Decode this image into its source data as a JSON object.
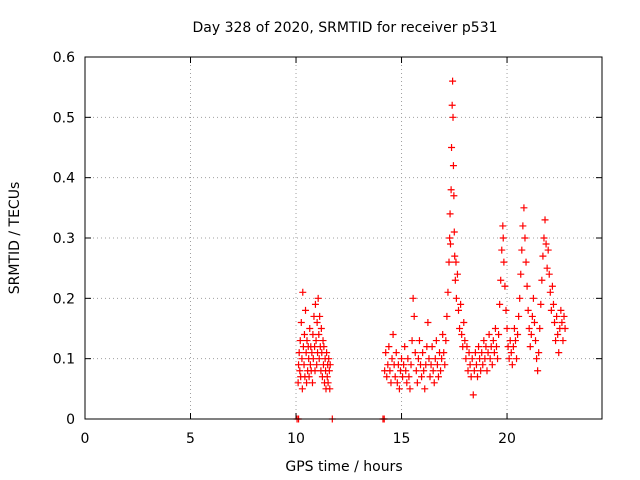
{
  "chart_data": {
    "type": "scatter",
    "title": "Day 328 of 2020, SRMTID for receiver p531",
    "xlabel": "GPS time / hours",
    "ylabel": "SRMTID / TECUs",
    "xlim": [
      0,
      24.5
    ],
    "ylim": [
      0,
      0.6
    ],
    "x_ticks": [
      0,
      5,
      10,
      15,
      20
    ],
    "x_tick_labels": [
      "0",
      "5",
      "10",
      "15",
      "20"
    ],
    "y_ticks": [
      0,
      0.1,
      0.2,
      0.3,
      0.4,
      0.5,
      0.6
    ],
    "y_tick_labels": [
      "0",
      "0.1",
      "0.2",
      "0.3",
      "0.4",
      "0.5",
      "0.6"
    ],
    "grid": true,
    "marker": "plus",
    "series": [
      {
        "name": "SRMTID",
        "color": "#ff0000",
        "points": [
          [
            10.05,
            0.0
          ],
          [
            10.12,
            0.0
          ],
          [
            11.72,
            0.0
          ],
          [
            14.12,
            0.0
          ],
          [
            14.18,
            0.0
          ],
          [
            10.1,
            0.06
          ],
          [
            10.12,
            0.09
          ],
          [
            10.15,
            0.11
          ],
          [
            10.18,
            0.08
          ],
          [
            10.2,
            0.13
          ],
          [
            10.22,
            0.07
          ],
          [
            10.25,
            0.16
          ],
          [
            10.28,
            0.1
          ],
          [
            10.3,
            0.05
          ],
          [
            10.32,
            0.21
          ],
          [
            10.35,
            0.12
          ],
          [
            10.38,
            0.09
          ],
          [
            10.4,
            0.14
          ],
          [
            10.42,
            0.07
          ],
          [
            10.45,
            0.18
          ],
          [
            10.48,
            0.11
          ],
          [
            10.5,
            0.06
          ],
          [
            10.52,
            0.13
          ],
          [
            10.55,
            0.08
          ],
          [
            10.58,
            0.12
          ],
          [
            10.6,
            0.1
          ],
          [
            10.62,
            0.07
          ],
          [
            10.65,
            0.15
          ],
          [
            10.68,
            0.09
          ],
          [
            10.7,
            0.12
          ],
          [
            10.72,
            0.08
          ],
          [
            10.75,
            0.11
          ],
          [
            10.78,
            0.06
          ],
          [
            10.8,
            0.14
          ],
          [
            10.82,
            0.1
          ],
          [
            10.85,
            0.17
          ],
          [
            10.88,
            0.12
          ],
          [
            10.9,
            0.08
          ],
          [
            10.92,
            0.19
          ],
          [
            10.95,
            0.13
          ],
          [
            10.98,
            0.09
          ],
          [
            11.0,
            0.16
          ],
          [
            11.02,
            0.11
          ],
          [
            11.05,
            0.2
          ],
          [
            11.08,
            0.14
          ],
          [
            11.1,
            0.1
          ],
          [
            11.12,
            0.17
          ],
          [
            11.15,
            0.12
          ],
          [
            11.18,
            0.08
          ],
          [
            11.2,
            0.15
          ],
          [
            11.22,
            0.11
          ],
          [
            11.25,
            0.07
          ],
          [
            11.28,
            0.13
          ],
          [
            11.3,
            0.09
          ],
          [
            11.32,
            0.12
          ],
          [
            11.35,
            0.06
          ],
          [
            11.38,
            0.1
          ],
          [
            11.4,
            0.08
          ],
          [
            11.42,
            0.05
          ],
          [
            11.45,
            0.11
          ],
          [
            11.48,
            0.07
          ],
          [
            11.5,
            0.09
          ],
          [
            11.52,
            0.06
          ],
          [
            11.55,
            0.1
          ],
          [
            11.58,
            0.08
          ],
          [
            11.6,
            0.05
          ],
          [
            11.62,
            0.09
          ],
          [
            14.2,
            0.08
          ],
          [
            14.25,
            0.11
          ],
          [
            14.3,
            0.07
          ],
          [
            14.35,
            0.09
          ],
          [
            14.4,
            0.12
          ],
          [
            14.45,
            0.08
          ],
          [
            14.5,
            0.06
          ],
          [
            14.55,
            0.1
          ],
          [
            14.6,
            0.14
          ],
          [
            14.65,
            0.09
          ],
          [
            14.7,
            0.07
          ],
          [
            14.75,
            0.11
          ],
          [
            14.8,
            0.06
          ],
          [
            14.85,
            0.09
          ],
          [
            14.9,
            0.05
          ],
          [
            14.95,
            0.08
          ],
          [
            15.0,
            0.1
          ],
          [
            15.05,
            0.07
          ],
          [
            15.1,
            0.09
          ],
          [
            15.15,
            0.12
          ],
          [
            15.2,
            0.08
          ],
          [
            15.25,
            0.06
          ],
          [
            15.3,
            0.1
          ],
          [
            15.35,
            0.07
          ],
          [
            15.4,
            0.05
          ],
          [
            15.45,
            0.09
          ],
          [
            15.5,
            0.13
          ],
          [
            15.55,
            0.2
          ],
          [
            15.6,
            0.17
          ],
          [
            15.65,
            0.11
          ],
          [
            15.7,
            0.08
          ],
          [
            15.75,
            0.06
          ],
          [
            15.8,
            0.1
          ],
          [
            15.85,
            0.13
          ],
          [
            15.9,
            0.09
          ],
          [
            15.95,
            0.07
          ],
          [
            16.0,
            0.11
          ],
          [
            16.05,
            0.08
          ],
          [
            16.1,
            0.05
          ],
          [
            16.15,
            0.09
          ],
          [
            16.2,
            0.12
          ],
          [
            16.25,
            0.16
          ],
          [
            16.3,
            0.1
          ],
          [
            16.35,
            0.07
          ],
          [
            16.4,
            0.09
          ],
          [
            16.45,
            0.12
          ],
          [
            16.5,
            0.08
          ],
          [
            16.55,
            0.06
          ],
          [
            16.6,
            0.1
          ],
          [
            16.65,
            0.13
          ],
          [
            16.7,
            0.09
          ],
          [
            16.75,
            0.07
          ],
          [
            16.8,
            0.11
          ],
          [
            16.85,
            0.08
          ],
          [
            16.9,
            0.1
          ],
          [
            16.95,
            0.14
          ],
          [
            17.0,
            0.11
          ],
          [
            17.05,
            0.09
          ],
          [
            17.1,
            0.13
          ],
          [
            17.15,
            0.17
          ],
          [
            17.2,
            0.21
          ],
          [
            17.25,
            0.26
          ],
          [
            17.28,
            0.3
          ],
          [
            17.3,
            0.34
          ],
          [
            17.32,
            0.29
          ],
          [
            17.35,
            0.38
          ],
          [
            17.37,
            0.45
          ],
          [
            17.4,
            0.52
          ],
          [
            17.42,
            0.56
          ],
          [
            17.44,
            0.5
          ],
          [
            17.46,
            0.42
          ],
          [
            17.48,
            0.37
          ],
          [
            17.5,
            0.31
          ],
          [
            17.52,
            0.27
          ],
          [
            17.55,
            0.23
          ],
          [
            17.58,
            0.26
          ],
          [
            17.6,
            0.2
          ],
          [
            17.65,
            0.24
          ],
          [
            17.7,
            0.18
          ],
          [
            17.75,
            0.15
          ],
          [
            17.8,
            0.19
          ],
          [
            17.85,
            0.14
          ],
          [
            17.9,
            0.12
          ],
          [
            17.95,
            0.16
          ],
          [
            18.0,
            0.13
          ],
          [
            18.05,
            0.1
          ],
          [
            18.1,
            0.12
          ],
          [
            18.15,
            0.08
          ],
          [
            18.2,
            0.11
          ],
          [
            18.25,
            0.09
          ],
          [
            18.3,
            0.07
          ],
          [
            18.35,
            0.1
          ],
          [
            18.4,
            0.04
          ],
          [
            18.45,
            0.08
          ],
          [
            18.5,
            0.11
          ],
          [
            18.55,
            0.09
          ],
          [
            18.6,
            0.07
          ],
          [
            18.65,
            0.12
          ],
          [
            18.7,
            0.1
          ],
          [
            18.75,
            0.08
          ],
          [
            18.8,
            0.11
          ],
          [
            18.85,
            0.09
          ],
          [
            18.9,
            0.13
          ],
          [
            18.95,
            0.1
          ],
          [
            19.0,
            0.12
          ],
          [
            19.05,
            0.08
          ],
          [
            19.1,
            0.11
          ],
          [
            19.15,
            0.14
          ],
          [
            19.2,
            0.1
          ],
          [
            19.25,
            0.12
          ],
          [
            19.3,
            0.09
          ],
          [
            19.35,
            0.13
          ],
          [
            19.4,
            0.11
          ],
          [
            19.45,
            0.15
          ],
          [
            19.5,
            0.12
          ],
          [
            19.55,
            0.1
          ],
          [
            19.6,
            0.14
          ],
          [
            19.65,
            0.19
          ],
          [
            19.7,
            0.23
          ],
          [
            19.75,
            0.28
          ],
          [
            19.8,
            0.32
          ],
          [
            19.82,
            0.3
          ],
          [
            19.85,
            0.26
          ],
          [
            19.9,
            0.22
          ],
          [
            19.95,
            0.18
          ],
          [
            20.0,
            0.15
          ],
          [
            20.05,
            0.12
          ],
          [
            20.1,
            0.1
          ],
          [
            20.15,
            0.13
          ],
          [
            20.2,
            0.11
          ],
          [
            20.25,
            0.09
          ],
          [
            20.3,
            0.12
          ],
          [
            20.35,
            0.15
          ],
          [
            20.4,
            0.13
          ],
          [
            20.45,
            0.1
          ],
          [
            20.5,
            0.14
          ],
          [
            20.55,
            0.17
          ],
          [
            20.6,
            0.2
          ],
          [
            20.65,
            0.24
          ],
          [
            20.7,
            0.28
          ],
          [
            20.75,
            0.32
          ],
          [
            20.8,
            0.35
          ],
          [
            20.85,
            0.3
          ],
          [
            20.9,
            0.26
          ],
          [
            20.95,
            0.22
          ],
          [
            21.0,
            0.18
          ],
          [
            21.05,
            0.15
          ],
          [
            21.1,
            0.12
          ],
          [
            21.15,
            0.14
          ],
          [
            21.2,
            0.17
          ],
          [
            21.25,
            0.2
          ],
          [
            21.3,
            0.16
          ],
          [
            21.35,
            0.13
          ],
          [
            21.4,
            0.1
          ],
          [
            21.45,
            0.08
          ],
          [
            21.5,
            0.11
          ],
          [
            21.55,
            0.15
          ],
          [
            21.6,
            0.19
          ],
          [
            21.65,
            0.23
          ],
          [
            21.7,
            0.27
          ],
          [
            21.75,
            0.3
          ],
          [
            21.8,
            0.33
          ],
          [
            21.85,
            0.29
          ],
          [
            21.9,
            0.25
          ],
          [
            21.95,
            0.28
          ],
          [
            22.0,
            0.24
          ],
          [
            22.05,
            0.21
          ],
          [
            22.1,
            0.18
          ],
          [
            22.15,
            0.22
          ],
          [
            22.2,
            0.19
          ],
          [
            22.25,
            0.16
          ],
          [
            22.3,
            0.13
          ],
          [
            22.35,
            0.17
          ],
          [
            22.4,
            0.14
          ],
          [
            22.45,
            0.11
          ],
          [
            22.5,
            0.15
          ],
          [
            22.55,
            0.18
          ],
          [
            22.6,
            0.16
          ],
          [
            22.65,
            0.13
          ],
          [
            22.7,
            0.17
          ],
          [
            22.75,
            0.15
          ]
        ]
      }
    ]
  }
}
